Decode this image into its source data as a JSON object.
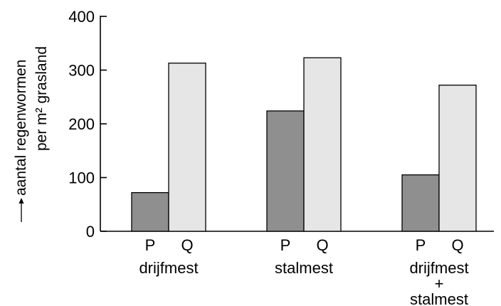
{
  "chart_data": {
    "type": "bar",
    "title": "",
    "xlabel": "",
    "ylabel": [
      "aantal regenwormen",
      "per m² grasland"
    ],
    "ylim": [
      0,
      400
    ],
    "yticks": [
      0,
      100,
      200,
      300,
      400
    ],
    "grid": false,
    "legend": "none",
    "groups": [
      {
        "label": [
          "drijfmest"
        ],
        "bars": [
          {
            "label": "P",
            "value": 72
          },
          {
            "label": "Q",
            "value": 313
          }
        ]
      },
      {
        "label": [
          "stalmest"
        ],
        "bars": [
          {
            "label": "P",
            "value": 224
          },
          {
            "label": "Q",
            "value": 323
          }
        ]
      },
      {
        "label": [
          "drijfmest",
          "+",
          "stalmest"
        ],
        "bars": [
          {
            "label": "P",
            "value": 105
          },
          {
            "label": "Q",
            "value": 272
          }
        ]
      }
    ],
    "bar_colors": {
      "P": "#8f8f8f",
      "Q": "#e6e6e6"
    }
  }
}
